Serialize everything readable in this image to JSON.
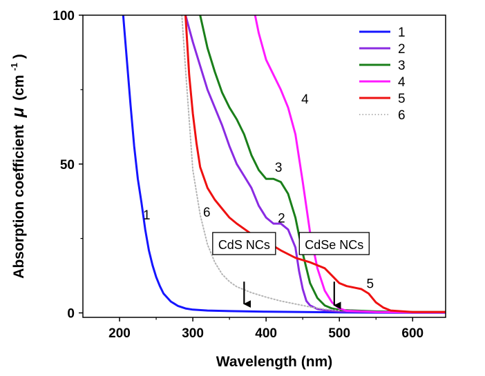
{
  "chart_data": {
    "type": "line",
    "xlabel": "Wavelength (nm)",
    "ylabel": "Absorption coefficient",
    "ylabel_symbol": "μ",
    "ylabel_unit": "(cm",
    "ylabel_unit_exp": "-1",
    "ylabel_unit_close": ")",
    "xlim": [
      150,
      645
    ],
    "ylim": [
      -1.5,
      100
    ],
    "xticks": [
      200,
      300,
      400,
      500,
      600
    ],
    "yticks": [
      0,
      50,
      100
    ],
    "grid": false,
    "legend_position": "top-right",
    "series": [
      {
        "name": "1",
        "color": "#1515ff",
        "dash": "solid",
        "x": [
          205,
          210,
          215,
          220,
          225,
          230,
          235,
          240,
          245,
          250,
          255,
          260,
          270,
          280,
          290,
          300,
          320,
          350,
          400,
          450,
          500,
          550,
          600,
          645
        ],
        "y": [
          100,
          85,
          70,
          56,
          45,
          37,
          28,
          21,
          16,
          12,
          9,
          6.5,
          3.8,
          2.3,
          1.5,
          1.1,
          0.8,
          0.6,
          0.4,
          0.3,
          0.2,
          0.1,
          0.05,
          0.05
        ]
      },
      {
        "name": "2",
        "color": "#8a2be2",
        "dash": "solid",
        "x": [
          290,
          300,
          310,
          320,
          330,
          340,
          350,
          360,
          370,
          380,
          390,
          400,
          410,
          420,
          430,
          440,
          445,
          450,
          455,
          460,
          470,
          480,
          500,
          550,
          600,
          645
        ],
        "y": [
          100,
          91,
          83,
          75,
          69,
          63,
          56,
          50,
          46,
          42,
          36,
          32,
          30,
          30,
          28,
          22,
          14,
          8,
          4,
          2.5,
          1.3,
          0.9,
          0.5,
          0.3,
          0.2,
          0.2
        ]
      },
      {
        "name": "3",
        "color": "#1a7f1a",
        "dash": "solid",
        "x": [
          310,
          320,
          330,
          340,
          350,
          360,
          370,
          380,
          390,
          400,
          410,
          420,
          430,
          440,
          450,
          460,
          470,
          480,
          490,
          500,
          550,
          600,
          645
        ],
        "y": [
          100,
          89,
          81,
          74,
          69,
          65,
          60,
          53,
          48,
          45,
          45,
          44,
          40,
          32,
          20,
          10,
          5,
          2.5,
          1.5,
          1,
          0.5,
          0.3,
          0.3
        ]
      },
      {
        "name": "4",
        "color": "#ff1aff",
        "dash": "solid",
        "x": [
          385,
          390,
          400,
          410,
          420,
          430,
          440,
          450,
          460,
          470,
          480,
          490,
          500,
          510,
          550,
          600,
          645
        ],
        "y": [
          100,
          94,
          85,
          80,
          75,
          69,
          60,
          44,
          27,
          15,
          7.5,
          3.5,
          1.5,
          0.7,
          0.3,
          0.2,
          0.2
        ]
      },
      {
        "name": "5",
        "color": "#ee1111",
        "dash": "solid",
        "x": [
          290,
          295,
          300,
          305,
          310,
          320,
          330,
          340,
          350,
          360,
          380,
          400,
          420,
          440,
          460,
          470,
          480,
          490,
          500,
          510,
          520,
          530,
          540,
          550,
          560,
          570,
          600,
          645
        ],
        "y": [
          100,
          80,
          67,
          57,
          49,
          42,
          38,
          35,
          32,
          30,
          26.5,
          24,
          21,
          18.5,
          17,
          16,
          15,
          12.5,
          10,
          9,
          8.5,
          8,
          6.5,
          3.5,
          1.8,
          0.8,
          0.3,
          0.3
        ]
      },
      {
        "name": "6",
        "color": "#b4b4b4",
        "dash": "dotted",
        "x": [
          285,
          290,
          295,
          300,
          310,
          320,
          330,
          340,
          350,
          360,
          380,
          400,
          420,
          440,
          460,
          480,
          500
        ],
        "y": [
          100,
          82,
          65,
          48,
          33,
          23,
          17,
          13,
          10.5,
          8.8,
          6.8,
          5.3,
          4.0,
          3.0,
          2.0,
          1.2,
          0.8
        ]
      }
    ],
    "curve_labels": [
      {
        "text": "1",
        "x": 237,
        "y": 33
      },
      {
        "text": "2",
        "x": 421,
        "y": 32
      },
      {
        "text": "3",
        "x": 417,
        "y": 49
      },
      {
        "text": "4",
        "x": 453,
        "y": 72
      },
      {
        "text": "5",
        "x": 542,
        "y": 10
      },
      {
        "text": "6",
        "x": 319,
        "y": 34
      }
    ],
    "annotations": [
      {
        "text": "CdS NCs",
        "arrow_x": 370,
        "arrow_y_start": 10.5,
        "arrow_y_end": 3
      },
      {
        "text": "CdSe NCs",
        "arrow_x": 493,
        "arrow_y_start": 10.5,
        "arrow_y_end": 2.5
      }
    ]
  }
}
